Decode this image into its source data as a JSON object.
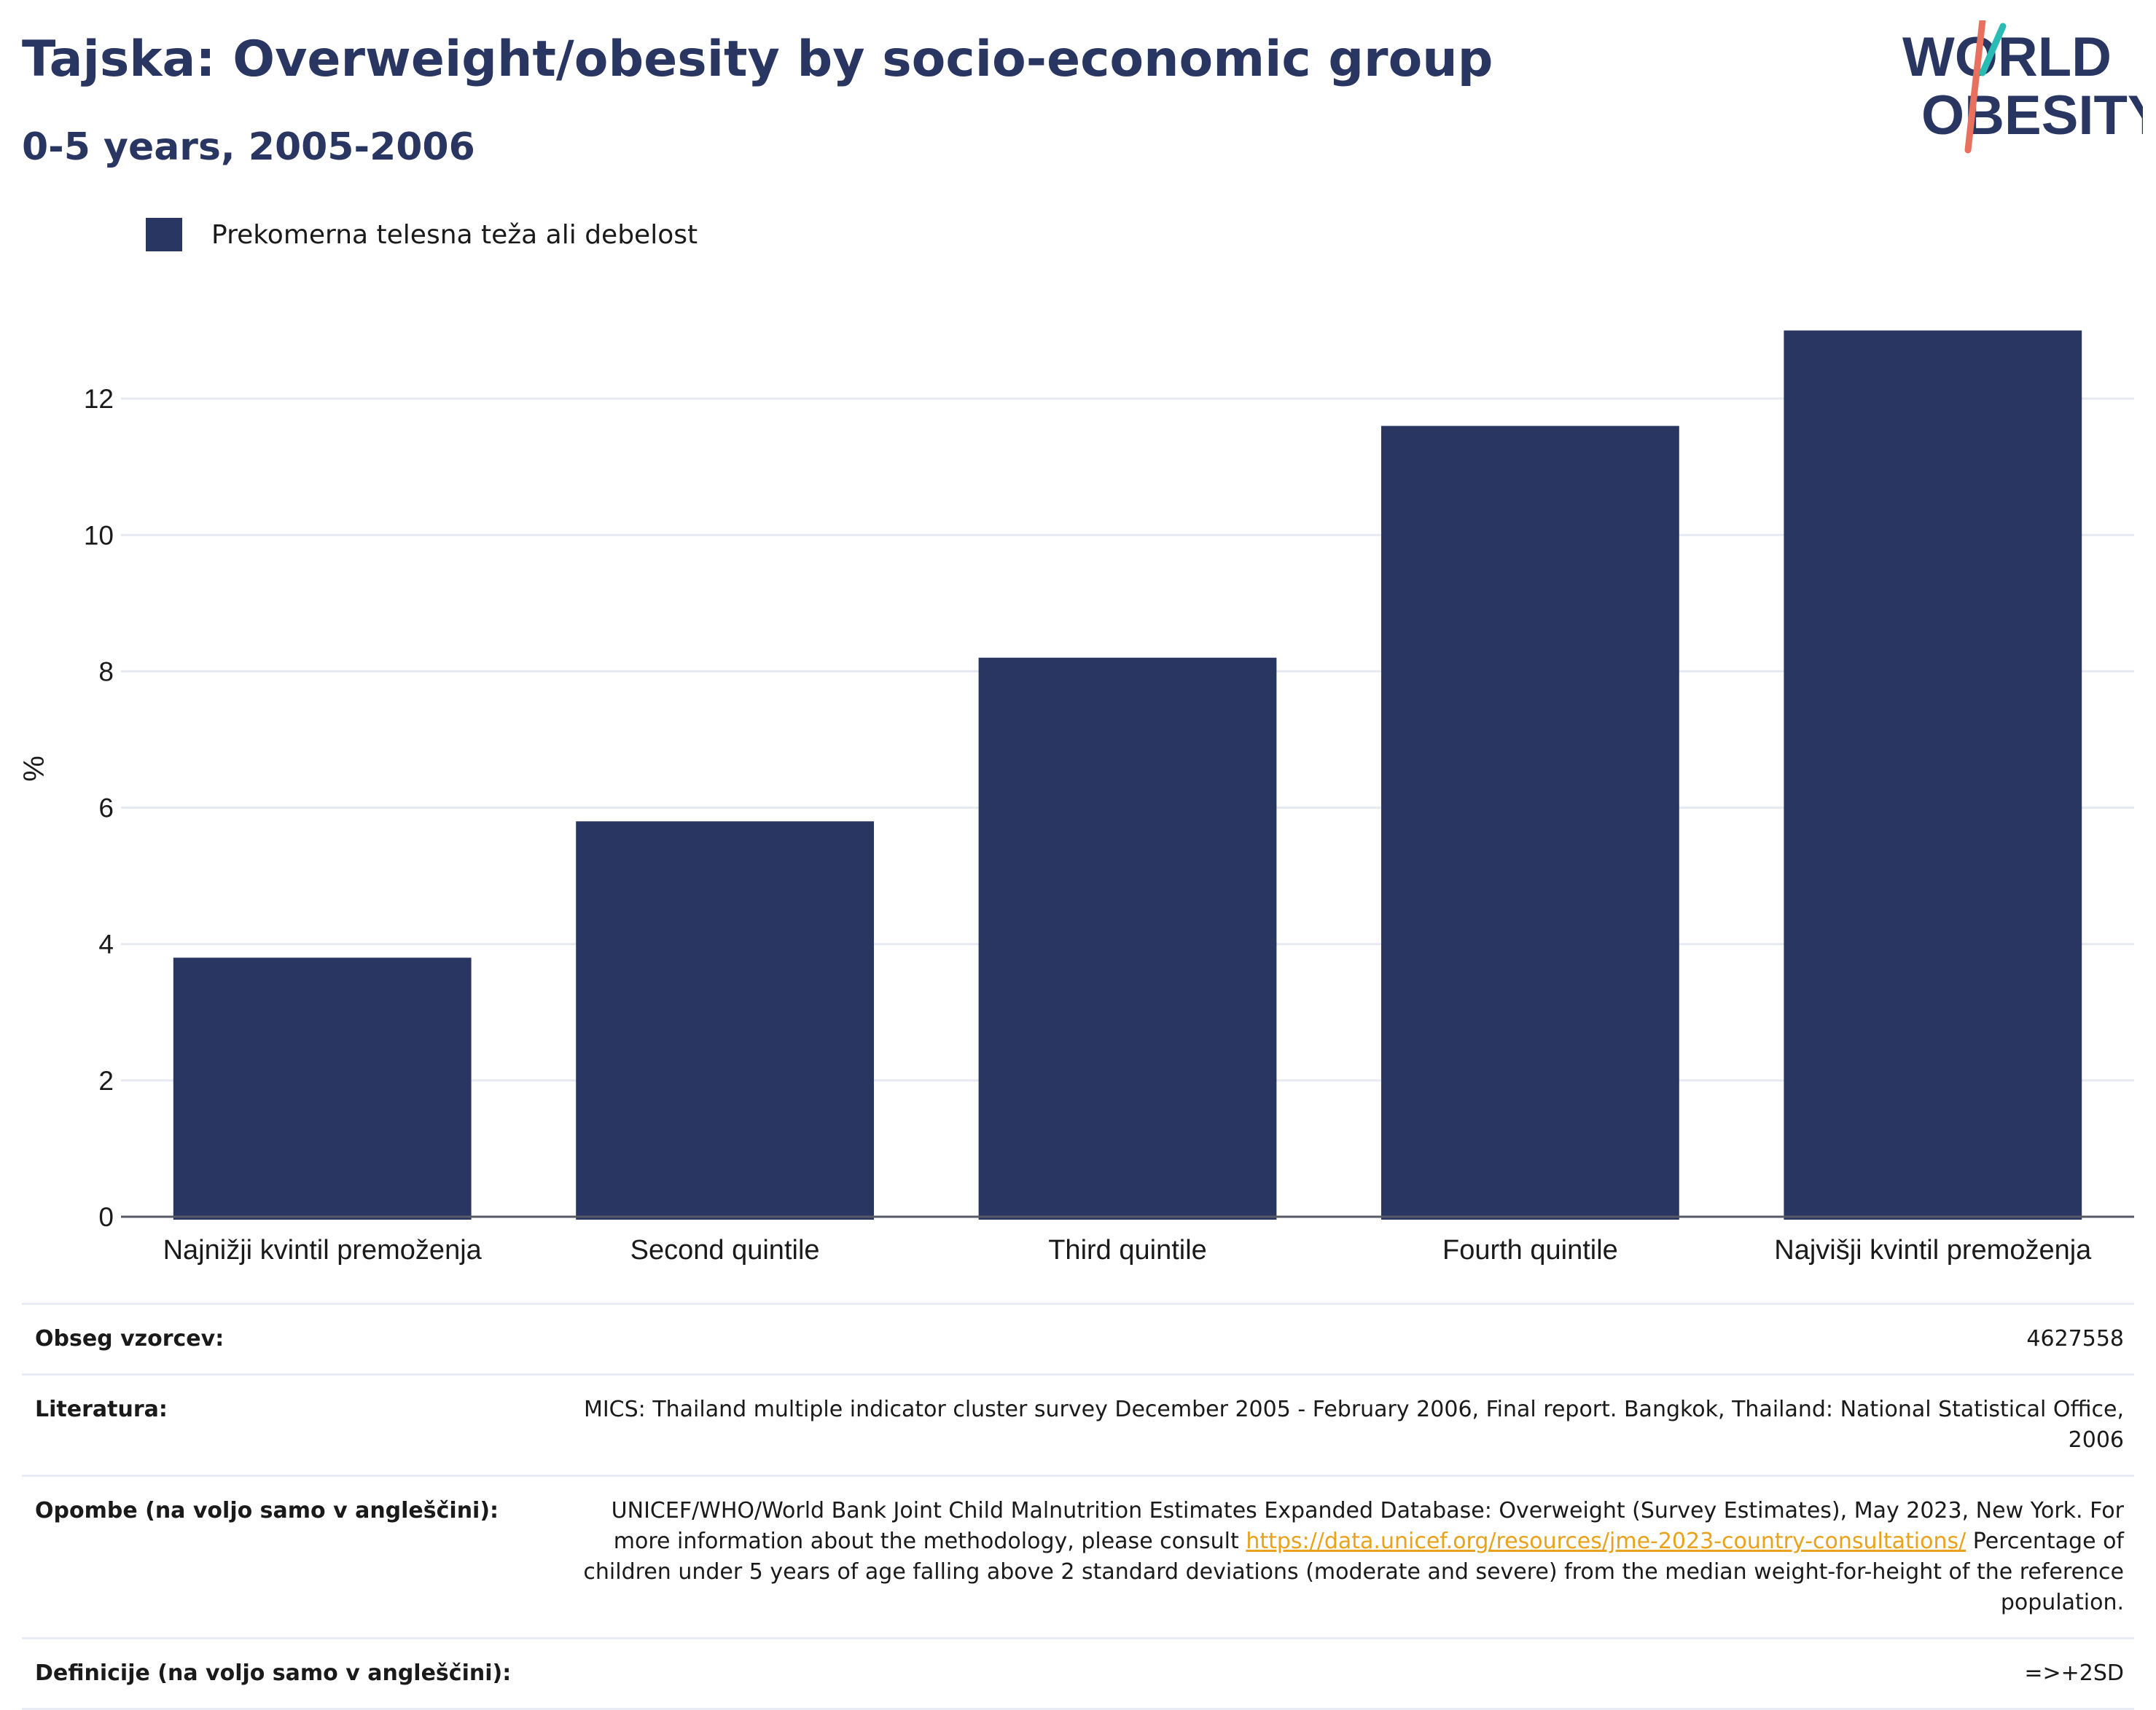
{
  "header": {
    "title": "Tajska: Overweight/obesity by socio-economic group",
    "subtitle": "0-5 years, 2005-2006",
    "logo_line1": "WORLD",
    "logo_line2": "OBESITY"
  },
  "legend": {
    "label": "Prekomerna telesna teža ali debelost"
  },
  "chart_data": {
    "type": "bar",
    "title": "Tajska: Overweight/obesity by socio-economic group",
    "subtitle": "0-5 years, 2005-2006",
    "xlabel": "",
    "ylabel": "%",
    "categories": [
      "Najnižji kvintil premoženja",
      "Second quintile",
      "Third quintile",
      "Fourth quintile",
      "Najvišji kvintil premoženja"
    ],
    "series": [
      {
        "name": "Prekomerna telesna teža ali debelost",
        "values": [
          3.8,
          5.8,
          8.2,
          11.6,
          13.0
        ],
        "color": "#2a3662"
      }
    ],
    "ylim": [
      0,
      14
    ],
    "yticks": [
      0,
      2,
      4,
      6,
      8,
      10,
      12
    ],
    "grid": true,
    "legend_position": "top-left"
  },
  "footer": {
    "rows": [
      {
        "label": "Obseg vzorcev:",
        "value": "4627558"
      },
      {
        "label": "Literatura:",
        "value": "MICS: Thailand multiple indicator cluster survey December 2005 - February 2006, Final report. Bangkok, Thailand: National Statistical Office, 2006"
      },
      {
        "label": "Opombe (na voljo samo v angleščini):",
        "value_before": "UNICEF/WHO/World Bank Joint Child Malnutrition Estimates Expanded Database: Overweight (Survey Estimates), May 2023, New York. For more information about the methodology, please consult ",
        "link": "https://data.unicef.org/resources/jme-2023-country-consultations/",
        "value_after": " Percentage of children under 5 years of age falling above 2 standard deviations (moderate and severe) from the median weight-for-height of the reference population."
      },
      {
        "label": "Definicije (na voljo samo v angleščini):",
        "value": "=>+2SD"
      }
    ]
  }
}
